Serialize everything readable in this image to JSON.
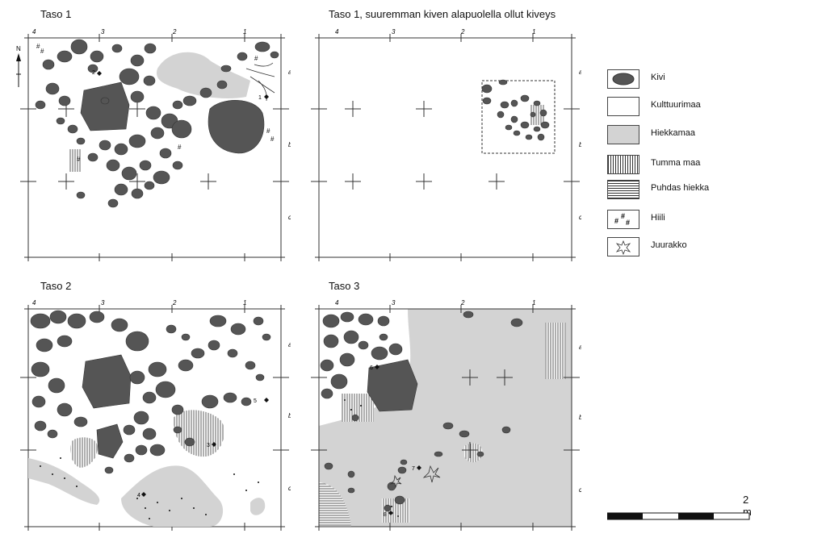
{
  "panels": [
    {
      "id": "taso1",
      "title": "Taso 1",
      "cols": [
        "4",
        "3",
        "2",
        "1"
      ],
      "rows": [
        "a",
        "b",
        "c"
      ]
    },
    {
      "id": "taso1b",
      "title": "Taso 1, suuremman kiven alapuolella ollut kiveys",
      "cols": [
        "4",
        "3",
        "2",
        "1"
      ],
      "rows": [
        "a",
        "b",
        "c"
      ]
    },
    {
      "id": "taso2",
      "title": "Taso 2",
      "cols": [
        "4",
        "3",
        "2",
        "1"
      ],
      "rows": [
        "a",
        "b",
        "c"
      ]
    },
    {
      "id": "taso3",
      "title": "Taso 3",
      "cols": [
        "4",
        "3",
        "2",
        "1"
      ],
      "rows": [
        "a",
        "b",
        "c"
      ]
    }
  ],
  "north_label": "N",
  "find_markers": {
    "taso1": [
      "2",
      "1"
    ],
    "taso2": [
      "5",
      "3",
      "4"
    ],
    "taso3": [
      "6",
      "7",
      "8"
    ]
  },
  "legend": [
    {
      "key": "kivi",
      "label": "Kivi"
    },
    {
      "key": "kulttuurimaa",
      "label": "Kulttuurimaa"
    },
    {
      "key": "hiekkamaa",
      "label": "Hiekkamaa"
    },
    {
      "key": "tumma_maa",
      "label": "Tumma maa"
    },
    {
      "key": "puhdas_hiekka",
      "label": "Puhdas hiekka"
    },
    {
      "key": "hiili",
      "label": "Hiili"
    },
    {
      "key": "juurakko",
      "label": "Juurakko"
    }
  ],
  "scale": {
    "label": "2 m"
  },
  "colors": {
    "stone": "#555555",
    "sand": "#d3d3d3",
    "line": "#333333"
  }
}
